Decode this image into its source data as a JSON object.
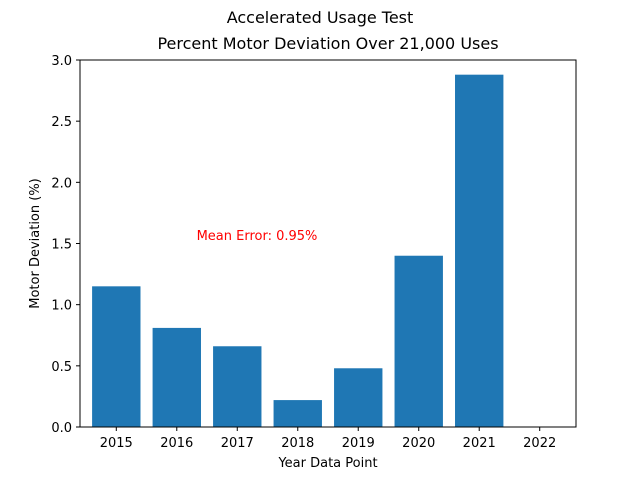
{
  "chart_data": {
    "type": "bar",
    "title": "Accelerated Usage Test",
    "subtitle": "Percent Motor Deviation Over 21,000 Uses",
    "xlabel": "Year Data Point",
    "ylabel": "Motor Deviation (%)",
    "categories": [
      "2015",
      "2016",
      "2017",
      "2018",
      "2019",
      "2020",
      "2021",
      "2022"
    ],
    "values": [
      1.15,
      0.81,
      0.66,
      0.22,
      0.48,
      1.4,
      2.88,
      0
    ],
    "ylim": [
      0,
      3.0
    ],
    "yticks": [
      "0.0",
      "0.5",
      "1.0",
      "1.5",
      "2.0",
      "2.5",
      "3.0"
    ],
    "grid": false,
    "bar_color": "#1f77b4",
    "annotation": {
      "text": "Mean Error: 0.95%",
      "color": "#ff0000"
    }
  }
}
